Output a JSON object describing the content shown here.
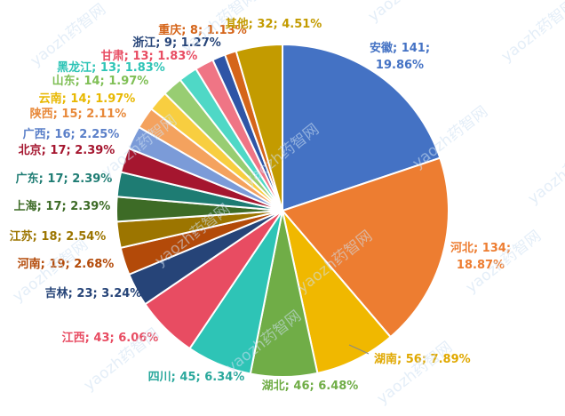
{
  "chart_data": {
    "type": "pie",
    "title": "",
    "start": "top",
    "direction": "clockwise",
    "label_format": "{name}; {value}; {percent}",
    "slices": [
      {
        "name": "安徽",
        "value": 141,
        "percent": "19.86%",
        "color": "#4472c4"
      },
      {
        "name": "河北",
        "value": 134,
        "percent": "18.87%",
        "color": "#ed7d31"
      },
      {
        "name": "湖南",
        "value": 56,
        "percent": "7.89%",
        "color": "#f0b800"
      },
      {
        "name": "湖北",
        "value": 46,
        "percent": "6.48%",
        "color": "#70ad47"
      },
      {
        "name": "四川",
        "value": 45,
        "percent": "6.34%",
        "color": "#2ec4b6"
      },
      {
        "name": "江西",
        "value": 43,
        "percent": "6.06%",
        "color": "#e84c62"
      },
      {
        "name": "吉林",
        "value": 23,
        "percent": "3.24%",
        "color": "#264478"
      },
      {
        "name": "河南",
        "value": 19,
        "percent": "2.68%",
        "color": "#b34a09"
      },
      {
        "name": "江苏",
        "value": 18,
        "percent": "2.54%",
        "color": "#9c7500"
      },
      {
        "name": "上海",
        "value": 17,
        "percent": "2.39%",
        "color": "#3d6b26"
      },
      {
        "name": "广东",
        "value": 17,
        "percent": "2.39%",
        "color": "#1e7c73"
      },
      {
        "name": "北京",
        "value": 17,
        "percent": "2.39%",
        "color": "#a5162f"
      },
      {
        "name": "广西",
        "value": 16,
        "percent": "2.25%",
        "color": "#7b9bd8"
      },
      {
        "name": "陕西",
        "value": 15,
        "percent": "2.11%",
        "color": "#f4a25e"
      },
      {
        "name": "云南",
        "value": 14,
        "percent": "1.97%",
        "color": "#f8ce40"
      },
      {
        "name": "山东",
        "value": 14,
        "percent": "1.97%",
        "color": "#98cd72"
      },
      {
        "name": "黑龙江",
        "value": 13,
        "percent": "1.83%",
        "color": "#4fd8c6"
      },
      {
        "name": "甘肃",
        "value": 13,
        "percent": "1.83%",
        "color": "#ef7585"
      },
      {
        "name": "浙江",
        "value": 9,
        "percent": "1.27%",
        "color": "#2f55a6"
      },
      {
        "name": "重庆",
        "value": 8,
        "percent": "1.13%",
        "color": "#d5651a"
      },
      {
        "name": "其他",
        "value": 32,
        "percent": "4.51%",
        "color": "#c39b00"
      }
    ],
    "label_colors": {
      "安徽": "#4472c4",
      "河北": "#ed7d31",
      "湖南": "#e0a800",
      "湖北": "#70ad47",
      "四川": "#2aa89c",
      "江西": "#e84c62",
      "吉林": "#264478",
      "河南": "#b34a09",
      "江苏": "#9c7500",
      "上海": "#3d6b26",
      "广东": "#1e7c73",
      "北京": "#a5162f",
      "广西": "#5a7fc8",
      "陕西": "#e8893a",
      "云南": "#e8b800",
      "山东": "#7fbf55",
      "黑龙江": "#2ec4b6",
      "甘肃": "#e84c62",
      "浙江": "#264478",
      "重庆": "#d5651a",
      "其他": "#c39b00"
    }
  },
  "watermark": {
    "text": "yaozh药智网"
  }
}
